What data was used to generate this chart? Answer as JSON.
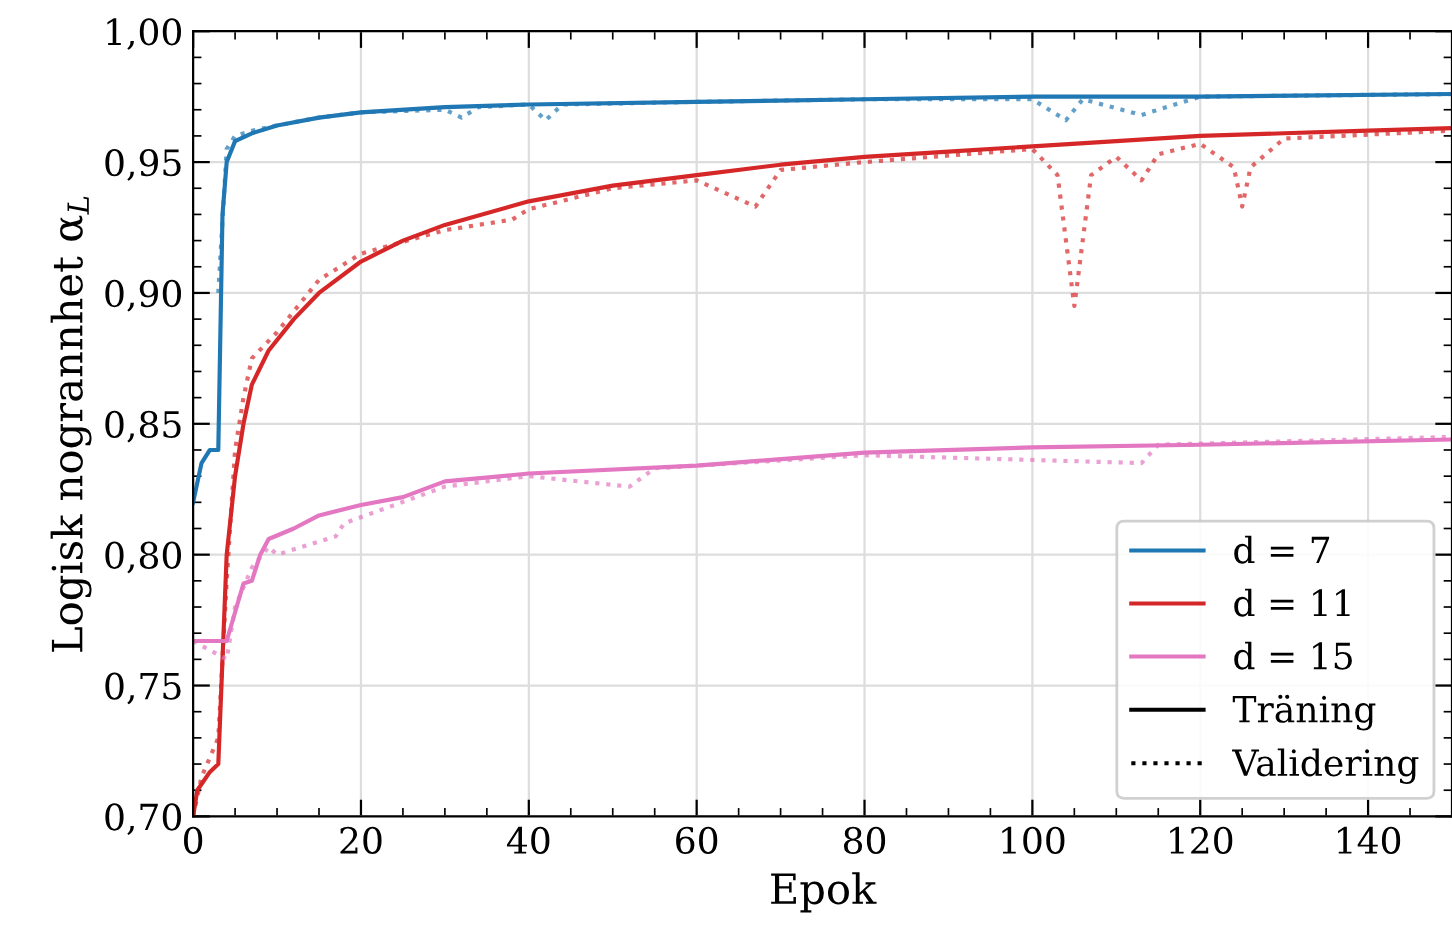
{
  "chart_data": {
    "type": "line",
    "xlabel": "Epok",
    "ylabel": "Logisk nogrannhet α$_{L}$",
    "xlim": [
      0,
      150
    ],
    "xticks": [
      0,
      20,
      40,
      60,
      80,
      100,
      120,
      140
    ],
    "ylim": [
      0.7,
      1.0
    ],
    "yticks": [
      {
        "value": 0.7,
        "label": "0,70"
      },
      {
        "value": 0.75,
        "label": "0,75"
      },
      {
        "value": 0.8,
        "label": "0,80"
      },
      {
        "value": 0.85,
        "label": "0,85"
      },
      {
        "value": 0.9,
        "label": "0,90"
      },
      {
        "value": 0.95,
        "label": "0,95"
      },
      {
        "value": 1.0,
        "label": "1,00"
      }
    ],
    "grid": true,
    "legend": "bottom right",
    "marker": "none",
    "annotations": [
      "Träning",
      "Validering"
    ],
    "series": [
      {
        "name": "d = 7",
        "color": "#1f77b4",
        "line_style": "solid",
        "x": [
          0,
          1,
          2,
          3,
          3.5,
          4,
          5,
          7,
          10,
          15,
          20,
          30,
          40,
          60,
          80,
          100,
          120,
          150
        ],
        "values": [
          0.82,
          0.835,
          0.84,
          0.84,
          0.93,
          0.95,
          0.958,
          0.961,
          0.964,
          0.967,
          0.969,
          0.971,
          0.972,
          0.973,
          0.974,
          0.975,
          0.975,
          0.976
        ]
      },
      {
        "color": "#1f77b4",
        "line_style": "dotted",
        "x": [
          3,
          4,
          5,
          7,
          10,
          15,
          20,
          30,
          32,
          34,
          40,
          42,
          44,
          60,
          80,
          100,
          104,
          106,
          113,
          120,
          150
        ],
        "values": [
          0.9,
          0.955,
          0.96,
          0.962,
          0.964,
          0.967,
          0.969,
          0.97,
          0.967,
          0.971,
          0.972,
          0.966,
          0.972,
          0.973,
          0.974,
          0.974,
          0.966,
          0.974,
          0.968,
          0.975,
          0.976
        ]
      },
      {
        "name": "d = 11",
        "color": "#d62728",
        "line_style": "solid",
        "x": [
          0,
          0.5,
          2,
          3,
          4,
          5,
          6,
          7,
          9,
          12,
          15,
          20,
          25,
          30,
          40,
          50,
          60,
          70,
          80,
          90,
          100,
          110,
          120,
          130,
          140,
          150
        ],
        "values": [
          0.7,
          0.71,
          0.717,
          0.72,
          0.8,
          0.83,
          0.85,
          0.865,
          0.878,
          0.89,
          0.9,
          0.912,
          0.92,
          0.926,
          0.935,
          0.941,
          0.945,
          0.949,
          0.952,
          0.954,
          0.956,
          0.958,
          0.96,
          0.961,
          0.962,
          0.963
        ]
      },
      {
        "color": "#d62728",
        "line_style": "dotted",
        "x": [
          0,
          1,
          3,
          4,
          5,
          6,
          7,
          10,
          15,
          20,
          30,
          38,
          40,
          50,
          60,
          67,
          70,
          80,
          100,
          103,
          104,
          105,
          106,
          107,
          110,
          113,
          115,
          120,
          124,
          125,
          126,
          130,
          150
        ],
        "values": [
          0.7,
          0.715,
          0.73,
          0.79,
          0.84,
          0.86,
          0.875,
          0.885,
          0.905,
          0.915,
          0.924,
          0.928,
          0.932,
          0.94,
          0.943,
          0.933,
          0.947,
          0.95,
          0.955,
          0.945,
          0.92,
          0.895,
          0.92,
          0.945,
          0.952,
          0.943,
          0.953,
          0.957,
          0.948,
          0.933,
          0.948,
          0.959,
          0.962
        ]
      },
      {
        "name": "d = 15",
        "color": "#e377c2",
        "line_style": "solid",
        "x": [
          0,
          4,
          5,
          6,
          7,
          8,
          9,
          12,
          15,
          20,
          25,
          30,
          40,
          60,
          80,
          100,
          120,
          150
        ],
        "values": [
          0.767,
          0.767,
          0.778,
          0.789,
          0.79,
          0.8,
          0.806,
          0.81,
          0.815,
          0.819,
          0.822,
          0.828,
          0.831,
          0.834,
          0.839,
          0.841,
          0.842,
          0.844
        ]
      },
      {
        "color": "#e377c2",
        "line_style": "dotted",
        "x": [
          0,
          4,
          5,
          7,
          9,
          10,
          17,
          18,
          30,
          40,
          52,
          55,
          80,
          113,
          115,
          150
        ],
        "values": [
          0.767,
          0.76,
          0.78,
          0.795,
          0.803,
          0.8,
          0.807,
          0.812,
          0.826,
          0.83,
          0.826,
          0.833,
          0.838,
          0.835,
          0.842,
          0.845
        ]
      }
    ]
  }
}
